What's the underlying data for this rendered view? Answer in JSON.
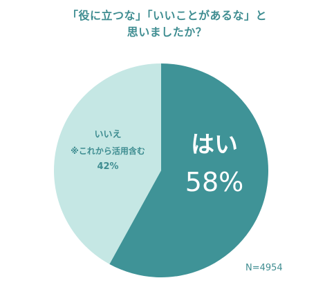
{
  "title": {
    "line1": "「役に立つな」「いいことがあるな」と",
    "line2": "思いましたか？"
  },
  "footnote": "N=4954",
  "colors": {
    "yes": "#3f9397",
    "no": "#c5e7e4",
    "text_accent": "#3f8d91",
    "yes_text": "#ffffff"
  },
  "chart_data": {
    "type": "pie",
    "title": "「役に立つな」「いいことがあるな」と思いましたか？",
    "slices": [
      {
        "label": "はい",
        "note": "",
        "value": 58,
        "display": "58%"
      },
      {
        "label": "いいえ",
        "note": "※これから活用含む",
        "value": 42,
        "display": "42%"
      }
    ],
    "legend": "none",
    "sample_size": "N=4954"
  }
}
